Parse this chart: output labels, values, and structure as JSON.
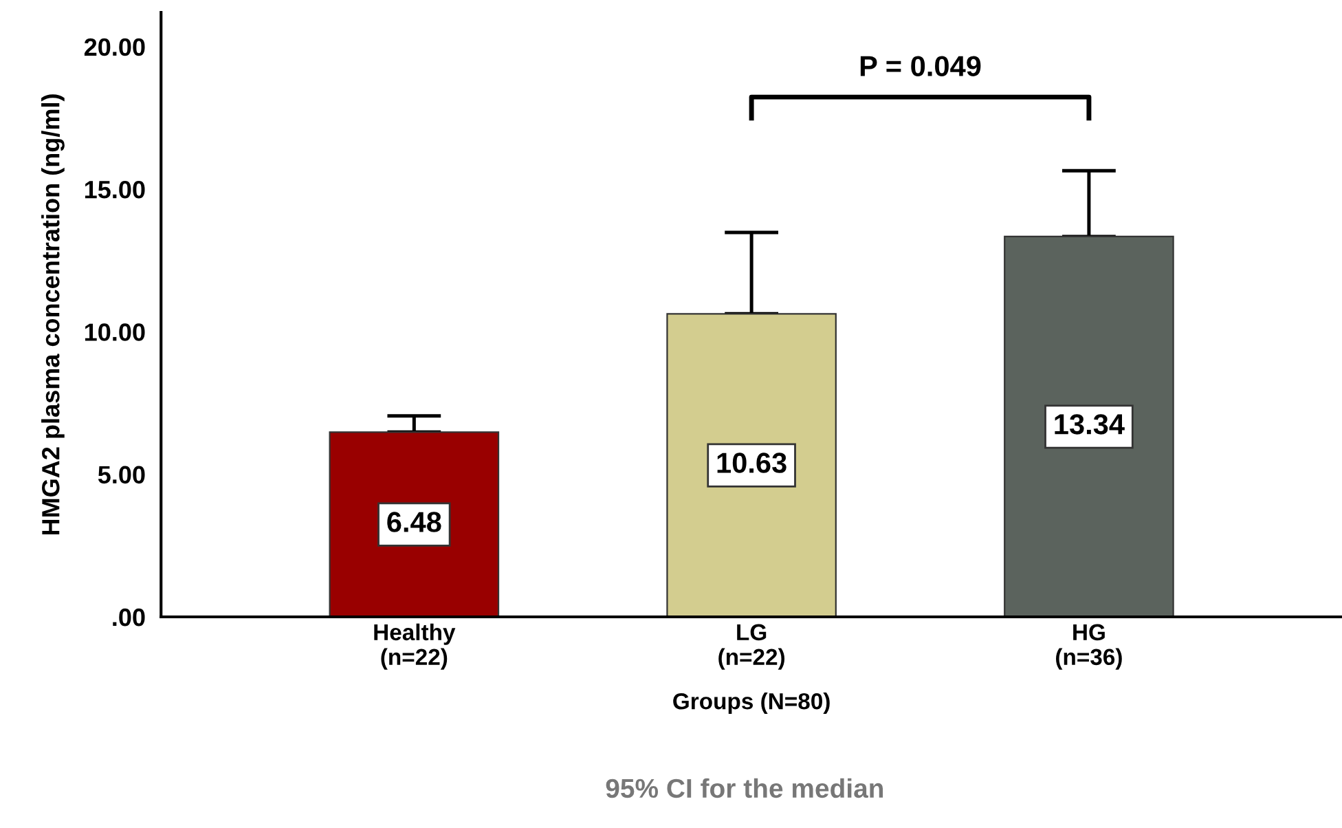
{
  "chart_data": {
    "type": "bar",
    "categories": [
      "Healthy\n(n=22)",
      "LG\n(n=22)",
      "HG\n(n=36)"
    ],
    "values": [
      6.48,
      10.63,
      13.34
    ],
    "colors": [
      "#990000",
      "#d3cd8f",
      "#5b635d"
    ],
    "errors": [
      [
        6.48,
        7.05
      ],
      [
        10.63,
        13.48
      ],
      [
        13.34,
        15.65
      ]
    ],
    "data_labels": true,
    "xlabel": "Groups (N=80)",
    "ylabel": "HMGA2 plasma concentration (ng/ml)",
    "ylim": [
      0,
      21.2
    ],
    "yticks": [
      {
        "value": 0,
        "label": ".00"
      },
      {
        "value": 5,
        "label": "5.00"
      },
      {
        "value": 10,
        "label": "10.00"
      },
      {
        "value": 15,
        "label": "15.00"
      },
      {
        "value": 20,
        "label": "20.00"
      }
    ],
    "grid": false,
    "annotations": [
      "P = 0.049",
      "95% CI for the median"
    ]
  }
}
